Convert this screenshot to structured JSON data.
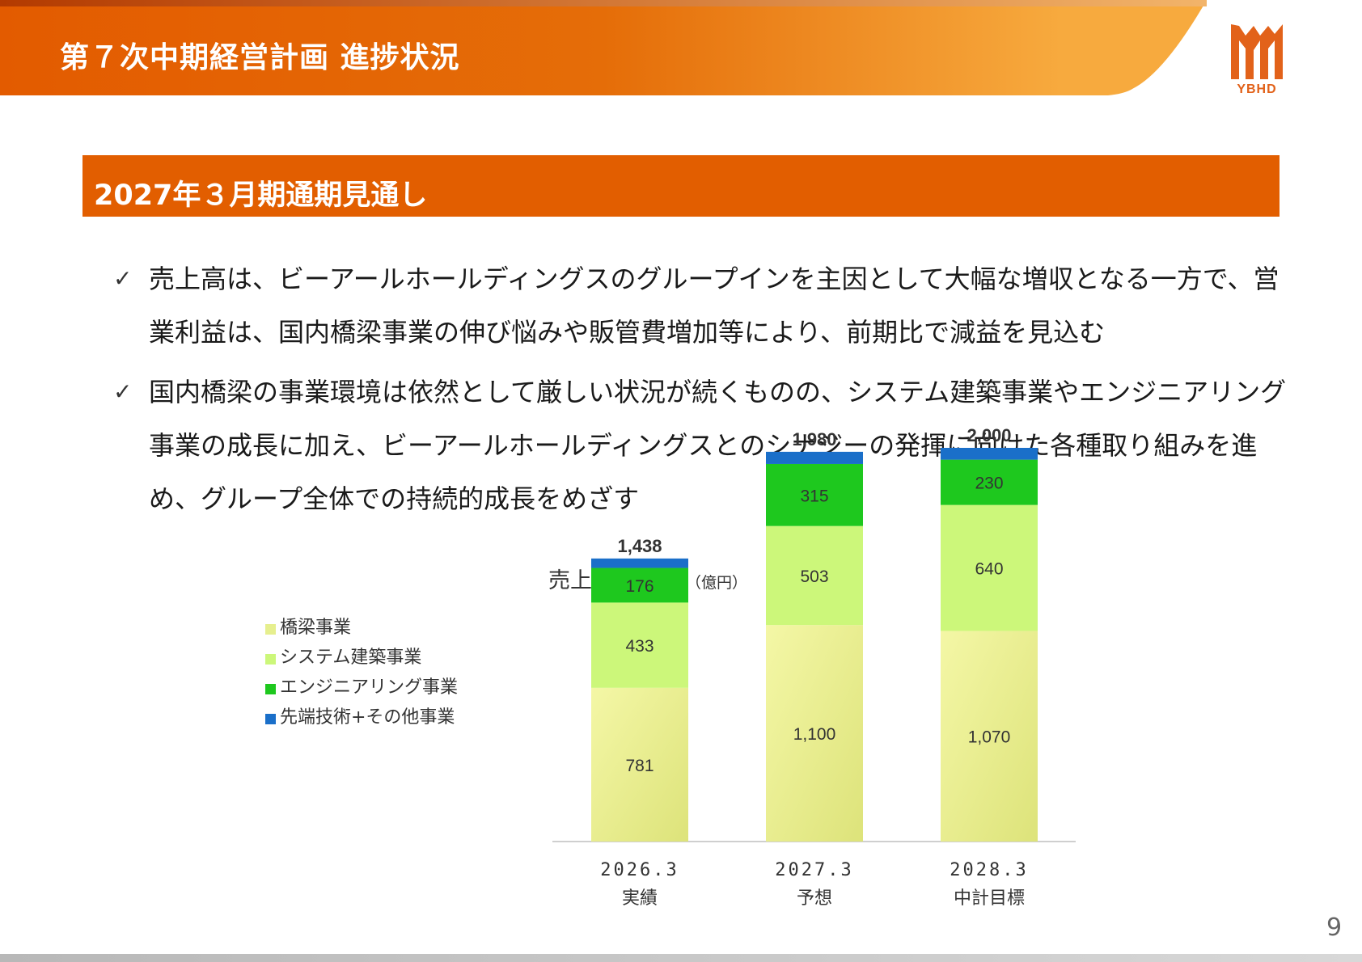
{
  "header": {
    "title": "第７次中期経営計画 進捗状況",
    "logo_text": "YBHD"
  },
  "section": {
    "title": "2027年３月期通期見通し"
  },
  "bullets": [
    {
      "icon": "check-icon",
      "text": "売上高は、ビーアールホールディングスのグループインを主因として大幅な増収となる一方で、営業利益は、国内橋梁事業の伸び悩みや販管費増加等により、前期比で減益を見込む"
    },
    {
      "icon": "check-icon",
      "text": "国内橋梁の事業環境は依然として厳しい状況が続くものの、システム建築事業やエンジニアリング事業の成長に加え、ビーアールホールディングスとのシナジーの発揮に向けた各種取り組みを進め、グループ全体での持続的成長をめざす"
    }
  ],
  "chart_data": {
    "type": "bar",
    "stacked": true,
    "title": "売上高の比較",
    "unit": "（億円）",
    "categories": [
      "2026.3",
      "2027.3",
      "2028.3"
    ],
    "category_sublabels": [
      "実績",
      "予想",
      "中計目標"
    ],
    "series": [
      {
        "name": "橋梁事業",
        "values": [
          781,
          1100,
          1070
        ],
        "color": "#e6ef8e"
      },
      {
        "name": "システム建築事業",
        "values": [
          433,
          503,
          640
        ],
        "color": "#ccf77a"
      },
      {
        "name": "エンジニアリング事業",
        "values": [
          176,
          315,
          230
        ],
        "color": "#1ec81e"
      },
      {
        "name": "先端技術+その他事業",
        "values": [
          48,
          62,
          60
        ],
        "color": "#1a6fc9"
      }
    ],
    "totals": [
      "1,438",
      "1,980",
      "2,000"
    ],
    "value_labels": [
      [
        "781",
        "1,100",
        "1,070"
      ],
      [
        "433",
        "503",
        "640"
      ],
      [
        "176",
        "315",
        "230"
      ]
    ],
    "legend_position": "top-left",
    "grid": false
  },
  "page_number": "9",
  "colors": {
    "accent": "#e25e00",
    "header_gradient_end": "#f7a840"
  }
}
